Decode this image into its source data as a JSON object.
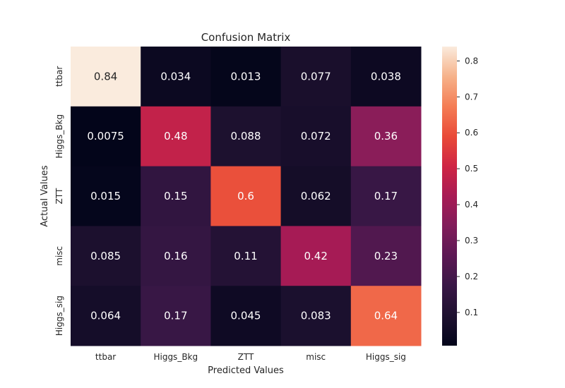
{
  "chart_data": {
    "type": "heatmap",
    "title": "Confusion Matrix",
    "xlabel": "Predicted Values",
    "ylabel": "Actual Values",
    "x_categories": [
      "ttbar",
      "Higgs_Bkg",
      "ZTT",
      "misc",
      "Higgs_sig"
    ],
    "y_categories": [
      "ttbar",
      "Higgs_Bkg",
      "ZTT",
      "misc",
      "Higgs_sig"
    ],
    "values": [
      [
        0.84,
        0.034,
        0.013,
        0.077,
        0.038
      ],
      [
        0.0075,
        0.48,
        0.088,
        0.072,
        0.36
      ],
      [
        0.015,
        0.15,
        0.6,
        0.062,
        0.17
      ],
      [
        0.085,
        0.16,
        0.11,
        0.42,
        0.23
      ],
      [
        0.064,
        0.17,
        0.045,
        0.083,
        0.64
      ]
    ],
    "value_labels": [
      [
        "0.84",
        "0.034",
        "0.013",
        "0.077",
        "0.038"
      ],
      [
        "0.0075",
        "0.48",
        "0.088",
        "0.072",
        "0.36"
      ],
      [
        "0.015",
        "0.15",
        "0.6",
        "0.062",
        "0.17"
      ],
      [
        "0.085",
        "0.16",
        "0.11",
        "0.42",
        "0.23"
      ],
      [
        "0.064",
        "0.17",
        "0.045",
        "0.083",
        "0.64"
      ]
    ],
    "colorscale": "rocket",
    "colorbar": {
      "range": [
        0.0075,
        0.84
      ],
      "ticks": [
        0.1,
        0.2,
        0.3,
        0.4,
        0.5,
        0.6,
        0.7,
        0.8
      ],
      "tick_labels": [
        "0.1",
        "0.2",
        "0.3",
        "0.4",
        "0.5",
        "0.6",
        "0.7",
        "0.8"
      ]
    },
    "grid": false
  }
}
